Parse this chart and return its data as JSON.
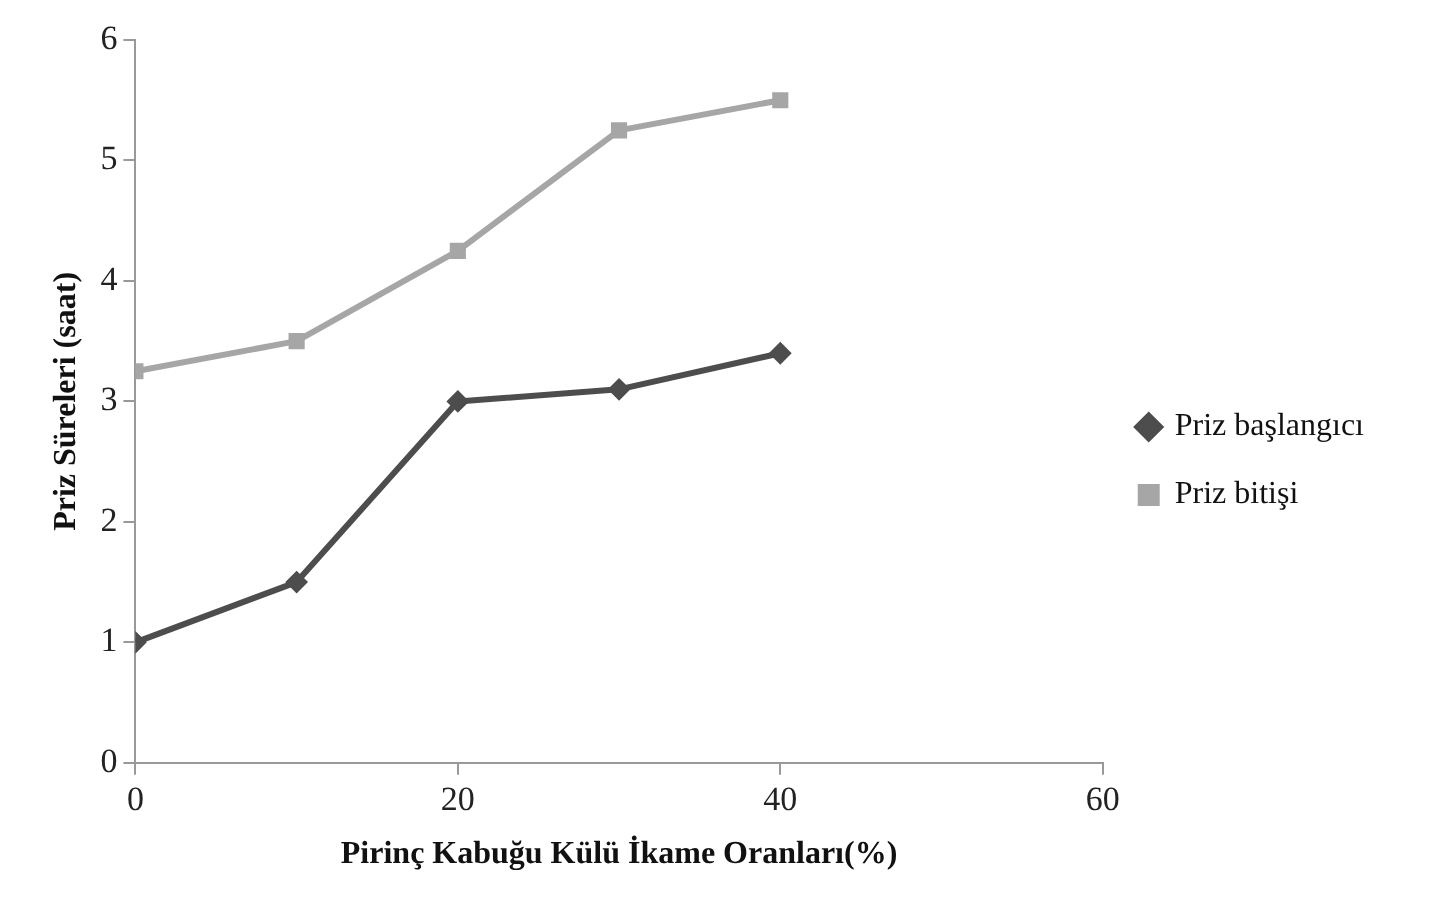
{
  "chart_data": {
    "type": "line",
    "xlabel": "Pirinç Kabuğu Külü İkame Oranları(%)",
    "ylabel": "Priz Süreleri (saat)",
    "x": [
      0,
      10,
      20,
      30,
      40
    ],
    "xlim": [
      0,
      60
    ],
    "xticks": [
      0,
      20,
      40,
      60
    ],
    "ylim": [
      0,
      6
    ],
    "yticks": [
      0,
      1,
      2,
      3,
      4,
      5,
      6
    ],
    "grid": false,
    "legend": "right",
    "series": [
      {
        "name": "Priz başlangıcı",
        "color": "#4d4d4d",
        "marker": "diamond",
        "values": [
          1,
          1.5,
          3,
          3.1,
          3.4
        ]
      },
      {
        "name": "Priz bitişi",
        "color": "#a6a6a6",
        "marker": "square",
        "values": [
          3.25,
          3.5,
          4.25,
          5.25,
          5.5
        ]
      }
    ]
  }
}
